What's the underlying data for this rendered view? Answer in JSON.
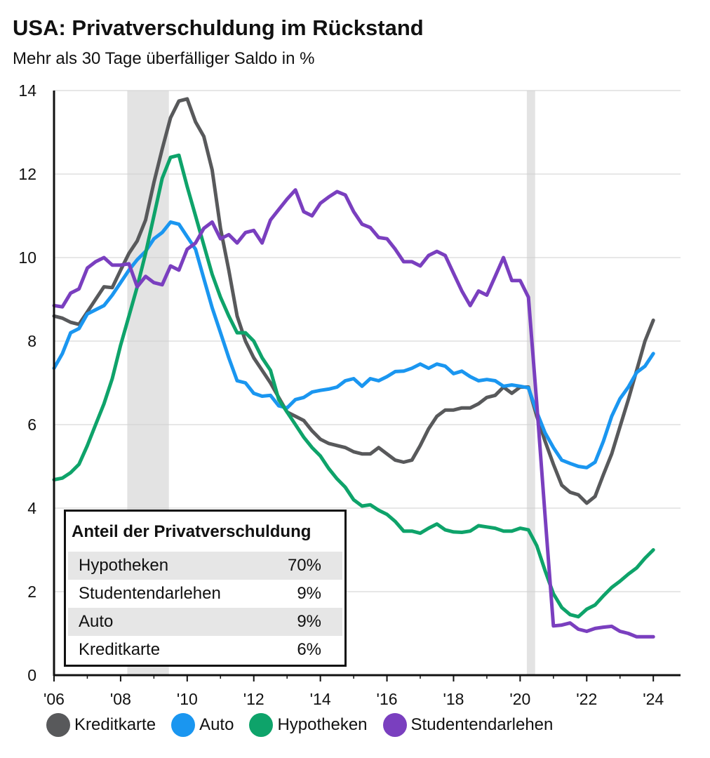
{
  "title": "USA: Privatverschuldung im Rückstand",
  "subtitle": "Mehr als 30 Tage überfälliger Saldo in %",
  "share_table": {
    "title": "Anteil der Privatverschuldung",
    "rows": [
      {
        "label": "Hypotheken",
        "value": "70%"
      },
      {
        "label": "Studentendarlehen",
        "value": "9%"
      },
      {
        "label": "Auto",
        "value": "9%"
      },
      {
        "label": "Kreditkarte",
        "value": "6%"
      }
    ]
  },
  "legend": [
    {
      "label": "Kreditkarte",
      "color": "#58595b"
    },
    {
      "label": "Auto",
      "color": "#1a96f0"
    },
    {
      "label": "Hypotheken",
      "color": "#0ea36a"
    },
    {
      "label": "Studentendarlehen",
      "color": "#7a3fbf"
    }
  ],
  "chart_data": {
    "type": "line",
    "ylim": [
      0,
      14
    ],
    "xlim": [
      2006,
      2024.5
    ],
    "yticks": [
      "0",
      "2",
      "4",
      "6",
      "8",
      "10",
      "12",
      "14"
    ],
    "xticks": [
      "'06",
      "'08",
      "'10",
      "'12",
      "'14",
      "'16",
      "'18",
      "'20",
      "'22",
      "'24"
    ],
    "recessions": [
      [
        2008.2,
        2009.45
      ],
      [
        2020.2,
        2020.45
      ]
    ],
    "grid": "horizontal",
    "series": [
      {
        "name": "Kreditkarte",
        "color": "#58595b",
        "points": [
          [
            2006.0,
            8.6
          ],
          [
            2006.25,
            8.55
          ],
          [
            2006.5,
            8.45
          ],
          [
            2006.75,
            8.4
          ],
          [
            2007.0,
            8.7
          ],
          [
            2007.25,
            9.0
          ],
          [
            2007.5,
            9.3
          ],
          [
            2007.75,
            9.28
          ],
          [
            2008.0,
            9.7
          ],
          [
            2008.25,
            10.1
          ],
          [
            2008.5,
            10.4
          ],
          [
            2008.75,
            10.9
          ],
          [
            2009.0,
            11.8
          ],
          [
            2009.25,
            12.6
          ],
          [
            2009.5,
            13.35
          ],
          [
            2009.75,
            13.75
          ],
          [
            2010.0,
            13.8
          ],
          [
            2010.25,
            13.25
          ],
          [
            2010.5,
            12.9
          ],
          [
            2010.75,
            12.1
          ],
          [
            2011.0,
            10.7
          ],
          [
            2011.25,
            9.7
          ],
          [
            2011.5,
            8.6
          ],
          [
            2011.75,
            8.0
          ],
          [
            2012.0,
            7.6
          ],
          [
            2012.25,
            7.3
          ],
          [
            2012.5,
            7.0
          ],
          [
            2012.75,
            6.65
          ],
          [
            2013.0,
            6.3
          ],
          [
            2013.25,
            6.2
          ],
          [
            2013.5,
            6.1
          ],
          [
            2013.75,
            5.85
          ],
          [
            2014.0,
            5.65
          ],
          [
            2014.25,
            5.55
          ],
          [
            2014.5,
            5.5
          ],
          [
            2014.75,
            5.45
          ],
          [
            2015.0,
            5.35
          ],
          [
            2015.25,
            5.3
          ],
          [
            2015.5,
            5.3
          ],
          [
            2015.75,
            5.45
          ],
          [
            2016.0,
            5.3
          ],
          [
            2016.25,
            5.15
          ],
          [
            2016.5,
            5.1
          ],
          [
            2016.75,
            5.15
          ],
          [
            2017.0,
            5.5
          ],
          [
            2017.25,
            5.9
          ],
          [
            2017.5,
            6.2
          ],
          [
            2017.75,
            6.35
          ],
          [
            2018.0,
            6.35
          ],
          [
            2018.25,
            6.4
          ],
          [
            2018.5,
            6.4
          ],
          [
            2018.75,
            6.5
          ],
          [
            2019.0,
            6.65
          ],
          [
            2019.25,
            6.7
          ],
          [
            2019.5,
            6.9
          ],
          [
            2019.75,
            6.75
          ],
          [
            2020.0,
            6.9
          ],
          [
            2020.25,
            6.9
          ],
          [
            2020.5,
            6.2
          ],
          [
            2020.75,
            5.6
          ],
          [
            2021.0,
            5.05
          ],
          [
            2021.25,
            4.55
          ],
          [
            2021.5,
            4.38
          ],
          [
            2021.75,
            4.32
          ],
          [
            2022.0,
            4.12
          ],
          [
            2022.25,
            4.28
          ],
          [
            2022.5,
            4.8
          ],
          [
            2022.75,
            5.3
          ],
          [
            2023.0,
            5.95
          ],
          [
            2023.25,
            6.6
          ],
          [
            2023.5,
            7.3
          ],
          [
            2023.75,
            8.0
          ],
          [
            2024.0,
            8.5
          ]
        ]
      },
      {
        "name": "Auto",
        "color": "#1a96f0",
        "points": [
          [
            2006.0,
            7.35
          ],
          [
            2006.25,
            7.7
          ],
          [
            2006.5,
            8.2
          ],
          [
            2006.75,
            8.3
          ],
          [
            2007.0,
            8.65
          ],
          [
            2007.25,
            8.75
          ],
          [
            2007.5,
            8.85
          ],
          [
            2007.75,
            9.1
          ],
          [
            2008.0,
            9.4
          ],
          [
            2008.25,
            9.7
          ],
          [
            2008.5,
            9.95
          ],
          [
            2008.75,
            10.15
          ],
          [
            2009.0,
            10.45
          ],
          [
            2009.25,
            10.6
          ],
          [
            2009.5,
            10.85
          ],
          [
            2009.75,
            10.8
          ],
          [
            2010.0,
            10.5
          ],
          [
            2010.25,
            10.2
          ],
          [
            2010.5,
            9.5
          ],
          [
            2010.75,
            8.8
          ],
          [
            2011.0,
            8.2
          ],
          [
            2011.25,
            7.6
          ],
          [
            2011.5,
            7.05
          ],
          [
            2011.75,
            7.0
          ],
          [
            2012.0,
            6.75
          ],
          [
            2012.25,
            6.68
          ],
          [
            2012.5,
            6.7
          ],
          [
            2012.75,
            6.45
          ],
          [
            2013.0,
            6.4
          ],
          [
            2013.25,
            6.6
          ],
          [
            2013.5,
            6.65
          ],
          [
            2013.75,
            6.78
          ],
          [
            2014.0,
            6.82
          ],
          [
            2014.25,
            6.85
          ],
          [
            2014.5,
            6.9
          ],
          [
            2014.75,
            7.05
          ],
          [
            2015.0,
            7.1
          ],
          [
            2015.25,
            6.92
          ],
          [
            2015.5,
            7.1
          ],
          [
            2015.75,
            7.05
          ],
          [
            2016.0,
            7.15
          ],
          [
            2016.25,
            7.27
          ],
          [
            2016.5,
            7.28
          ],
          [
            2016.75,
            7.35
          ],
          [
            2017.0,
            7.45
          ],
          [
            2017.25,
            7.35
          ],
          [
            2017.5,
            7.45
          ],
          [
            2017.75,
            7.4
          ],
          [
            2018.0,
            7.22
          ],
          [
            2018.25,
            7.28
          ],
          [
            2018.5,
            7.15
          ],
          [
            2018.75,
            7.05
          ],
          [
            2019.0,
            7.08
          ],
          [
            2019.25,
            7.05
          ],
          [
            2019.5,
            6.92
          ],
          [
            2019.75,
            6.95
          ],
          [
            2020.0,
            6.92
          ],
          [
            2020.25,
            6.88
          ],
          [
            2020.5,
            6.3
          ],
          [
            2020.75,
            5.8
          ],
          [
            2021.0,
            5.45
          ],
          [
            2021.25,
            5.15
          ],
          [
            2021.5,
            5.07
          ],
          [
            2021.75,
            5.0
          ],
          [
            2022.0,
            4.97
          ],
          [
            2022.25,
            5.1
          ],
          [
            2022.5,
            5.6
          ],
          [
            2022.75,
            6.2
          ],
          [
            2023.0,
            6.62
          ],
          [
            2023.25,
            6.9
          ],
          [
            2023.5,
            7.25
          ],
          [
            2023.75,
            7.4
          ],
          [
            2024.0,
            7.7
          ]
        ]
      },
      {
        "name": "Hypotheken",
        "color": "#0ea36a",
        "points": [
          [
            2006.0,
            4.68
          ],
          [
            2006.25,
            4.72
          ],
          [
            2006.5,
            4.85
          ],
          [
            2006.75,
            5.05
          ],
          [
            2007.0,
            5.5
          ],
          [
            2007.25,
            6.0
          ],
          [
            2007.5,
            6.5
          ],
          [
            2007.75,
            7.1
          ],
          [
            2008.0,
            7.9
          ],
          [
            2008.25,
            8.6
          ],
          [
            2008.5,
            9.3
          ],
          [
            2008.75,
            10.1
          ],
          [
            2009.0,
            11.0
          ],
          [
            2009.25,
            11.9
          ],
          [
            2009.5,
            12.4
          ],
          [
            2009.75,
            12.45
          ],
          [
            2010.0,
            11.7
          ],
          [
            2010.25,
            11.0
          ],
          [
            2010.5,
            10.3
          ],
          [
            2010.75,
            9.6
          ],
          [
            2011.0,
            9.05
          ],
          [
            2011.25,
            8.6
          ],
          [
            2011.5,
            8.2
          ],
          [
            2011.75,
            8.2
          ],
          [
            2012.0,
            8.0
          ],
          [
            2012.25,
            7.6
          ],
          [
            2012.5,
            7.3
          ],
          [
            2012.75,
            6.6
          ],
          [
            2013.0,
            6.3
          ],
          [
            2013.25,
            6.0
          ],
          [
            2013.5,
            5.7
          ],
          [
            2013.75,
            5.45
          ],
          [
            2014.0,
            5.25
          ],
          [
            2014.25,
            4.95
          ],
          [
            2014.5,
            4.7
          ],
          [
            2014.75,
            4.5
          ],
          [
            2015.0,
            4.2
          ],
          [
            2015.25,
            4.05
          ],
          [
            2015.5,
            4.08
          ],
          [
            2015.75,
            3.95
          ],
          [
            2016.0,
            3.85
          ],
          [
            2016.25,
            3.68
          ],
          [
            2016.5,
            3.45
          ],
          [
            2016.75,
            3.45
          ],
          [
            2017.0,
            3.4
          ],
          [
            2017.25,
            3.52
          ],
          [
            2017.5,
            3.62
          ],
          [
            2017.75,
            3.48
          ],
          [
            2018.0,
            3.43
          ],
          [
            2018.25,
            3.42
          ],
          [
            2018.5,
            3.45
          ],
          [
            2018.75,
            3.58
          ],
          [
            2019.0,
            3.55
          ],
          [
            2019.25,
            3.52
          ],
          [
            2019.5,
            3.45
          ],
          [
            2019.75,
            3.45
          ],
          [
            2020.0,
            3.52
          ],
          [
            2020.25,
            3.48
          ],
          [
            2020.5,
            3.1
          ],
          [
            2020.75,
            2.5
          ],
          [
            2021.0,
            1.95
          ],
          [
            2021.25,
            1.62
          ],
          [
            2021.5,
            1.45
          ],
          [
            2021.75,
            1.4
          ],
          [
            2022.0,
            1.58
          ],
          [
            2022.25,
            1.68
          ],
          [
            2022.5,
            1.9
          ],
          [
            2022.75,
            2.1
          ],
          [
            2023.0,
            2.25
          ],
          [
            2023.25,
            2.42
          ],
          [
            2023.5,
            2.57
          ],
          [
            2023.75,
            2.8
          ],
          [
            2024.0,
            3.0
          ]
        ]
      },
      {
        "name": "Studentendarlehen",
        "color": "#7a3fbf",
        "points": [
          [
            2006.0,
            8.85
          ],
          [
            2006.25,
            8.82
          ],
          [
            2006.5,
            9.15
          ],
          [
            2006.75,
            9.25
          ],
          [
            2007.0,
            9.75
          ],
          [
            2007.25,
            9.9
          ],
          [
            2007.5,
            10.0
          ],
          [
            2007.75,
            9.82
          ],
          [
            2008.0,
            9.82
          ],
          [
            2008.25,
            9.85
          ],
          [
            2008.5,
            9.3
          ],
          [
            2008.75,
            9.55
          ],
          [
            2009.0,
            9.4
          ],
          [
            2009.25,
            9.35
          ],
          [
            2009.5,
            9.8
          ],
          [
            2009.75,
            9.7
          ],
          [
            2010.0,
            10.2
          ],
          [
            2010.25,
            10.35
          ],
          [
            2010.5,
            10.7
          ],
          [
            2010.75,
            10.85
          ],
          [
            2011.0,
            10.45
          ],
          [
            2011.25,
            10.55
          ],
          [
            2011.5,
            10.35
          ],
          [
            2011.75,
            10.6
          ],
          [
            2012.0,
            10.65
          ],
          [
            2012.25,
            10.35
          ],
          [
            2012.5,
            10.9
          ],
          [
            2012.75,
            11.15
          ],
          [
            2013.0,
            11.4
          ],
          [
            2013.25,
            11.62
          ],
          [
            2013.5,
            11.1
          ],
          [
            2013.75,
            11.0
          ],
          [
            2014.0,
            11.3
          ],
          [
            2014.25,
            11.45
          ],
          [
            2014.5,
            11.58
          ],
          [
            2014.75,
            11.5
          ],
          [
            2015.0,
            11.1
          ],
          [
            2015.25,
            10.8
          ],
          [
            2015.5,
            10.72
          ],
          [
            2015.75,
            10.48
          ],
          [
            2016.0,
            10.45
          ],
          [
            2016.25,
            10.2
          ],
          [
            2016.5,
            9.9
          ],
          [
            2016.75,
            9.9
          ],
          [
            2017.0,
            9.8
          ],
          [
            2017.25,
            10.05
          ],
          [
            2017.5,
            10.15
          ],
          [
            2017.75,
            10.05
          ],
          [
            2018.0,
            9.62
          ],
          [
            2018.25,
            9.2
          ],
          [
            2018.5,
            8.85
          ],
          [
            2018.75,
            9.2
          ],
          [
            2019.0,
            9.1
          ],
          [
            2019.25,
            9.55
          ],
          [
            2019.5,
            10.0
          ],
          [
            2019.75,
            9.45
          ],
          [
            2020.0,
            9.45
          ],
          [
            2020.25,
            9.05
          ],
          [
            2020.5,
            6.5
          ],
          [
            2020.75,
            3.8
          ],
          [
            2021.0,
            1.18
          ],
          [
            2021.25,
            1.2
          ],
          [
            2021.5,
            1.25
          ],
          [
            2021.75,
            1.1
          ],
          [
            2022.0,
            1.05
          ],
          [
            2022.25,
            1.12
          ],
          [
            2022.5,
            1.15
          ],
          [
            2022.75,
            1.17
          ],
          [
            2023.0,
            1.05
          ],
          [
            2023.25,
            1.0
          ],
          [
            2023.5,
            0.92
          ],
          [
            2023.75,
            0.92
          ],
          [
            2024.0,
            0.92
          ]
        ]
      }
    ]
  }
}
